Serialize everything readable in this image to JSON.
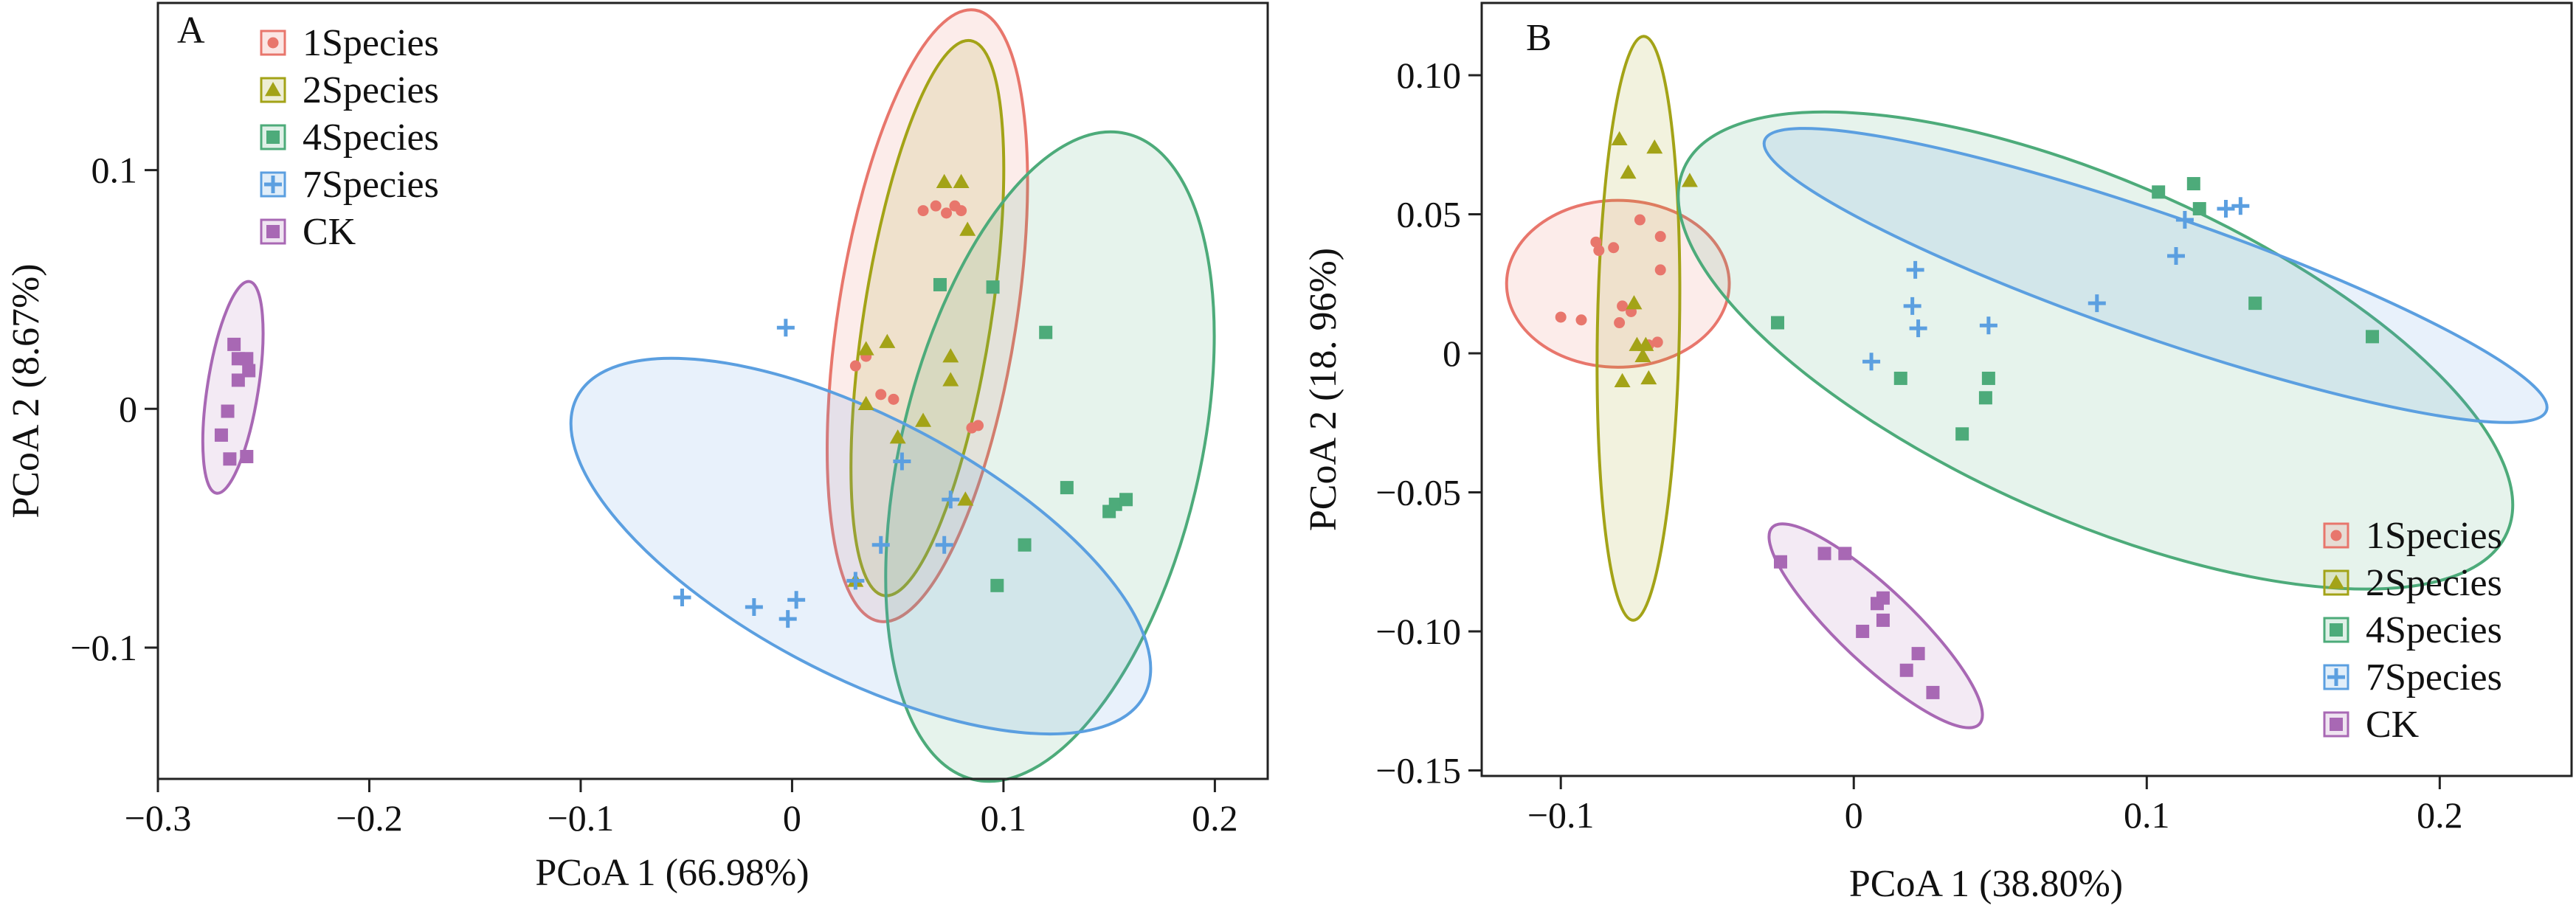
{
  "figure": {
    "panels": [
      "A",
      "B"
    ]
  },
  "chart_data": [
    {
      "panel": "A",
      "type": "scatter",
      "xlabel": "PCoA 1 (66.98%)",
      "ylabel": "PCoA 2 (8.67%)",
      "xlim": [
        -0.3,
        0.225
      ],
      "ylim": [
        -0.155,
        0.17
      ],
      "xticks": [
        -0.3,
        -0.2,
        -0.1,
        0,
        0.1,
        0.2
      ],
      "xticklabels": [
        "−0.3",
        "−0.2",
        "−0.1",
        "0",
        "0.1",
        "0.2"
      ],
      "yticks": [
        -0.1,
        0,
        0.1
      ],
      "yticklabels": [
        "−0.1",
        "0",
        "0.1"
      ],
      "legend_position": "top-left",
      "series": [
        {
          "name": "1Species",
          "color": "#e8766c",
          "marker": "circle",
          "points": [
            [
              0.03,
              0.018
            ],
            [
              0.035,
              0.022
            ],
            [
              0.042,
              0.006
            ],
            [
              0.048,
              0.004
            ],
            [
              0.062,
              0.083
            ],
            [
              0.068,
              0.085
            ],
            [
              0.073,
              0.082
            ],
            [
              0.077,
              0.085
            ],
            [
              0.08,
              0.083
            ],
            [
              0.085,
              -0.008
            ],
            [
              0.088,
              -0.007
            ]
          ],
          "ellipse": {
            "cx": 0.064,
            "cy": 0.039,
            "rx": 0.13,
            "ry": 0.042,
            "angle": 80
          }
        },
        {
          "name": "2Species",
          "color": "#a3a317",
          "marker": "triangle",
          "points": [
            [
              0.035,
              0.025
            ],
            [
              0.035,
              0.002
            ],
            [
              0.045,
              0.028
            ],
            [
              0.05,
              -0.012
            ],
            [
              0.062,
              -0.005
            ],
            [
              0.072,
              0.095
            ],
            [
              0.075,
              0.012
            ],
            [
              0.075,
              0.022
            ],
            [
              0.08,
              0.095
            ],
            [
              0.082,
              -0.038
            ],
            [
              0.083,
              0.075
            ],
            [
              0.03,
              -0.072
            ]
          ],
          "ellipse": {
            "cx": 0.064,
            "cy": 0.038,
            "rx": 0.118,
            "ry": 0.03,
            "angle": 80
          }
        },
        {
          "name": "4Species",
          "color": "#4dab7a",
          "marker": "square",
          "points": [
            [
              0.07,
              0.052
            ],
            [
              0.095,
              0.051
            ],
            [
              0.12,
              0.032
            ],
            [
              0.13,
              -0.033
            ],
            [
              0.11,
              -0.057
            ],
            [
              0.097,
              -0.074
            ],
            [
              0.15,
              -0.043
            ],
            [
              0.153,
              -0.04
            ],
            [
              0.158,
              -0.038
            ]
          ],
          "ellipse": {
            "cx": 0.122,
            "cy": -0.02,
            "rx": 0.14,
            "ry": 0.07,
            "angle": 75
          }
        },
        {
          "name": "7Species",
          "color": "#5b9fe0",
          "marker": "plus",
          "points": [
            [
              -0.003,
              0.034
            ],
            [
              -0.052,
              -0.079
            ],
            [
              -0.018,
              -0.083
            ],
            [
              -0.002,
              -0.088
            ],
            [
              0.002,
              -0.08
            ],
            [
              0.03,
              -0.072
            ],
            [
              0.042,
              -0.057
            ],
            [
              0.052,
              -0.022
            ],
            [
              0.072,
              -0.057
            ],
            [
              0.075,
              -0.038
            ]
          ],
          "ellipse": {
            "cx": 0.0325,
            "cy": -0.0575,
            "rx": 0.148,
            "ry": 0.055,
            "angle": -25
          }
        },
        {
          "name": "CK",
          "color": "#a868b4",
          "marker": "square",
          "points": [
            [
              -0.264,
              0.027
            ],
            [
              -0.262,
              0.021
            ],
            [
              -0.258,
              0.021
            ],
            [
              -0.257,
              0.016
            ],
            [
              -0.262,
              0.012
            ],
            [
              -0.267,
              -0.001
            ],
            [
              -0.27,
              -0.011
            ],
            [
              -0.266,
              -0.021
            ],
            [
              -0.258,
              -0.02
            ]
          ],
          "ellipse": {
            "cx": -0.2645,
            "cy": 0.009,
            "rx": 0.045,
            "ry": 0.012,
            "angle": 80
          }
        }
      ]
    },
    {
      "panel": "B",
      "type": "scatter",
      "xlabel": "PCoA 1 (38.80%)",
      "ylabel": "PCoA 2 (18. 96%)",
      "xlim": [
        -0.127,
        0.245
      ],
      "ylim": [
        -0.152,
        0.126
      ],
      "xticks": [
        -0.1,
        0,
        0.1,
        0.2
      ],
      "xticklabels": [
        "−0.1",
        "0",
        "0.1",
        "0.2"
      ],
      "yticks": [
        -0.15,
        -0.1,
        -0.05,
        0,
        0.05,
        0.1
      ],
      "yticklabels": [
        "−0.15",
        "−0.10",
        "−0.05",
        "0",
        "0.05",
        "0.10"
      ],
      "legend_position": "bottom-right",
      "series": [
        {
          "name": "1Species",
          "color": "#e8766c",
          "marker": "circle",
          "points": [
            [
              -0.1,
              0.013
            ],
            [
              -0.093,
              0.012
            ],
            [
              -0.088,
              0.04
            ],
            [
              -0.087,
              0.037
            ],
            [
              -0.082,
              0.038
            ],
            [
              -0.08,
              0.011
            ],
            [
              -0.079,
              0.017
            ],
            [
              -0.076,
              0.015
            ],
            [
              -0.073,
              0.048
            ],
            [
              -0.07,
              0.003
            ],
            [
              -0.066,
              0.03
            ],
            [
              -0.066,
              0.042
            ],
            [
              -0.067,
              0.004
            ]
          ],
          "ellipse": {
            "cx": -0.0805,
            "cy": 0.025,
            "rx": 0.038,
            "ry": 0.03,
            "angle": 0
          }
        },
        {
          "name": "2Species",
          "color": "#a3a317",
          "marker": "triangle",
          "points": [
            [
              -0.08,
              0.077
            ],
            [
              -0.077,
              0.065
            ],
            [
              -0.068,
              0.074
            ],
            [
              -0.056,
              0.062
            ],
            [
              -0.079,
              -0.01
            ],
            [
              -0.074,
              0.003
            ],
            [
              -0.071,
              0.003
            ],
            [
              -0.072,
              -0.001
            ],
            [
              -0.07,
              -0.009
            ],
            [
              -0.075,
              0.018
            ]
          ],
          "ellipse": {
            "cx": -0.0735,
            "cy": 0.009,
            "rx": 0.105,
            "ry": 0.014,
            "angle": 89
          }
        },
        {
          "name": "4Species",
          "color": "#4dab7a",
          "marker": "square",
          "points": [
            [
              -0.026,
              0.011
            ],
            [
              0.016,
              -0.009
            ],
            [
              0.037,
              -0.029
            ],
            [
              0.046,
              -0.009
            ],
            [
              0.045,
              -0.016
            ],
            [
              0.104,
              0.058
            ],
            [
              0.116,
              0.061
            ],
            [
              0.118,
              0.052
            ],
            [
              0.137,
              0.018
            ],
            [
              0.177,
              0.006
            ]
          ],
          "ellipse": {
            "cx": 0.0825,
            "cy": 0.001,
            "rx": 0.155,
            "ry": 0.06,
            "angle": -25
          }
        },
        {
          "name": "7Species",
          "color": "#5b9fe0",
          "marker": "plus",
          "points": [
            [
              0.006,
              -0.003
            ],
            [
              0.02,
              0.017
            ],
            [
              0.021,
              0.03
            ],
            [
              0.022,
              0.009
            ],
            [
              0.046,
              0.01
            ],
            [
              0.083,
              0.018
            ],
            [
              0.11,
              0.035
            ],
            [
              0.113,
              0.048
            ],
            [
              0.127,
              0.052
            ],
            [
              0.132,
              0.053
            ]
          ],
          "ellipse": {
            "cx": 0.103,
            "cy": 0.028,
            "rx": 0.142,
            "ry": 0.022,
            "angle": -20
          }
        },
        {
          "name": "CK",
          "color": "#a868b4",
          "marker": "square",
          "points": [
            [
              -0.025,
              -0.075
            ],
            [
              -0.01,
              -0.072
            ],
            [
              -0.003,
              -0.072
            ],
            [
              0.003,
              -0.1
            ],
            [
              0.008,
              -0.09
            ],
            [
              0.01,
              -0.088
            ],
            [
              0.01,
              -0.096
            ],
            [
              0.018,
              -0.114
            ],
            [
              0.022,
              -0.108
            ],
            [
              0.027,
              -0.122
            ]
          ],
          "ellipse": {
            "cx": 0.0075,
            "cy": -0.098,
            "rx": 0.05,
            "ry": 0.013,
            "angle": -45
          }
        }
      ]
    }
  ]
}
